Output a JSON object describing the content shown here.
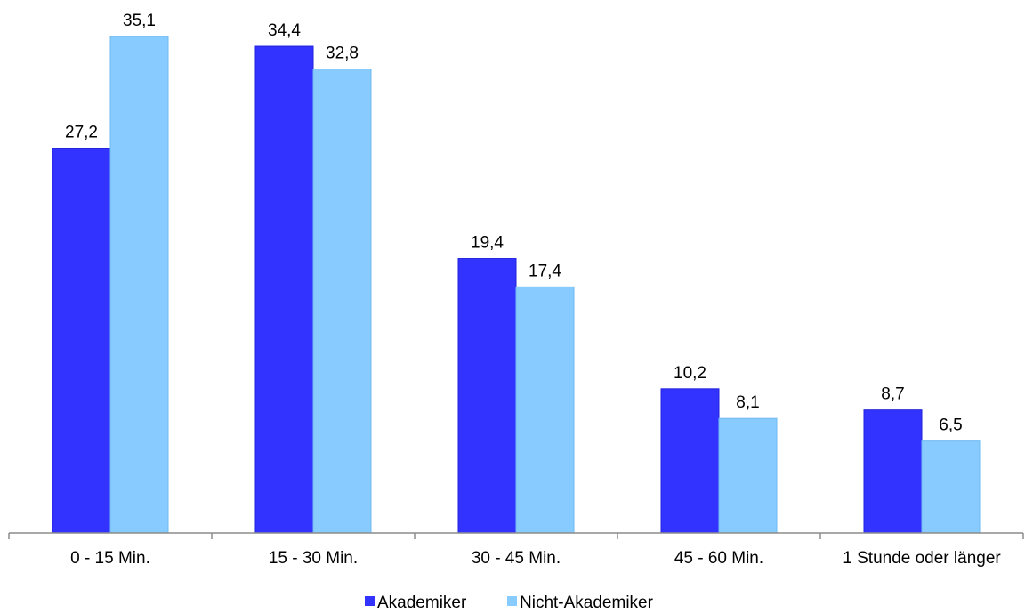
{
  "chart_data": {
    "type": "bar",
    "title": "",
    "xlabel": "",
    "ylabel": "",
    "categories": [
      "0 - 15 Min.",
      "15 - 30 Min.",
      "30 - 45 Min.",
      "45 - 60 Min.",
      "1 Stunde oder länger"
    ],
    "series": [
      {
        "name": "Akademiker",
        "values": [
          27.2,
          34.4,
          19.4,
          10.2,
          8.7
        ],
        "labels": [
          "27,2",
          "34,4",
          "19,4",
          "10,2",
          "8,7"
        ],
        "color": "#3333ff"
      },
      {
        "name": "Nicht-Akademiker",
        "values": [
          35.1,
          32.8,
          17.4,
          8.1,
          6.5
        ],
        "labels": [
          "35,1",
          "32,8",
          "17,4",
          "8,1",
          "6,5"
        ],
        "color": "#87cbff"
      }
    ],
    "ylim": [
      0,
      37.8
    ],
    "grid": false,
    "legend_position": "bottom"
  }
}
